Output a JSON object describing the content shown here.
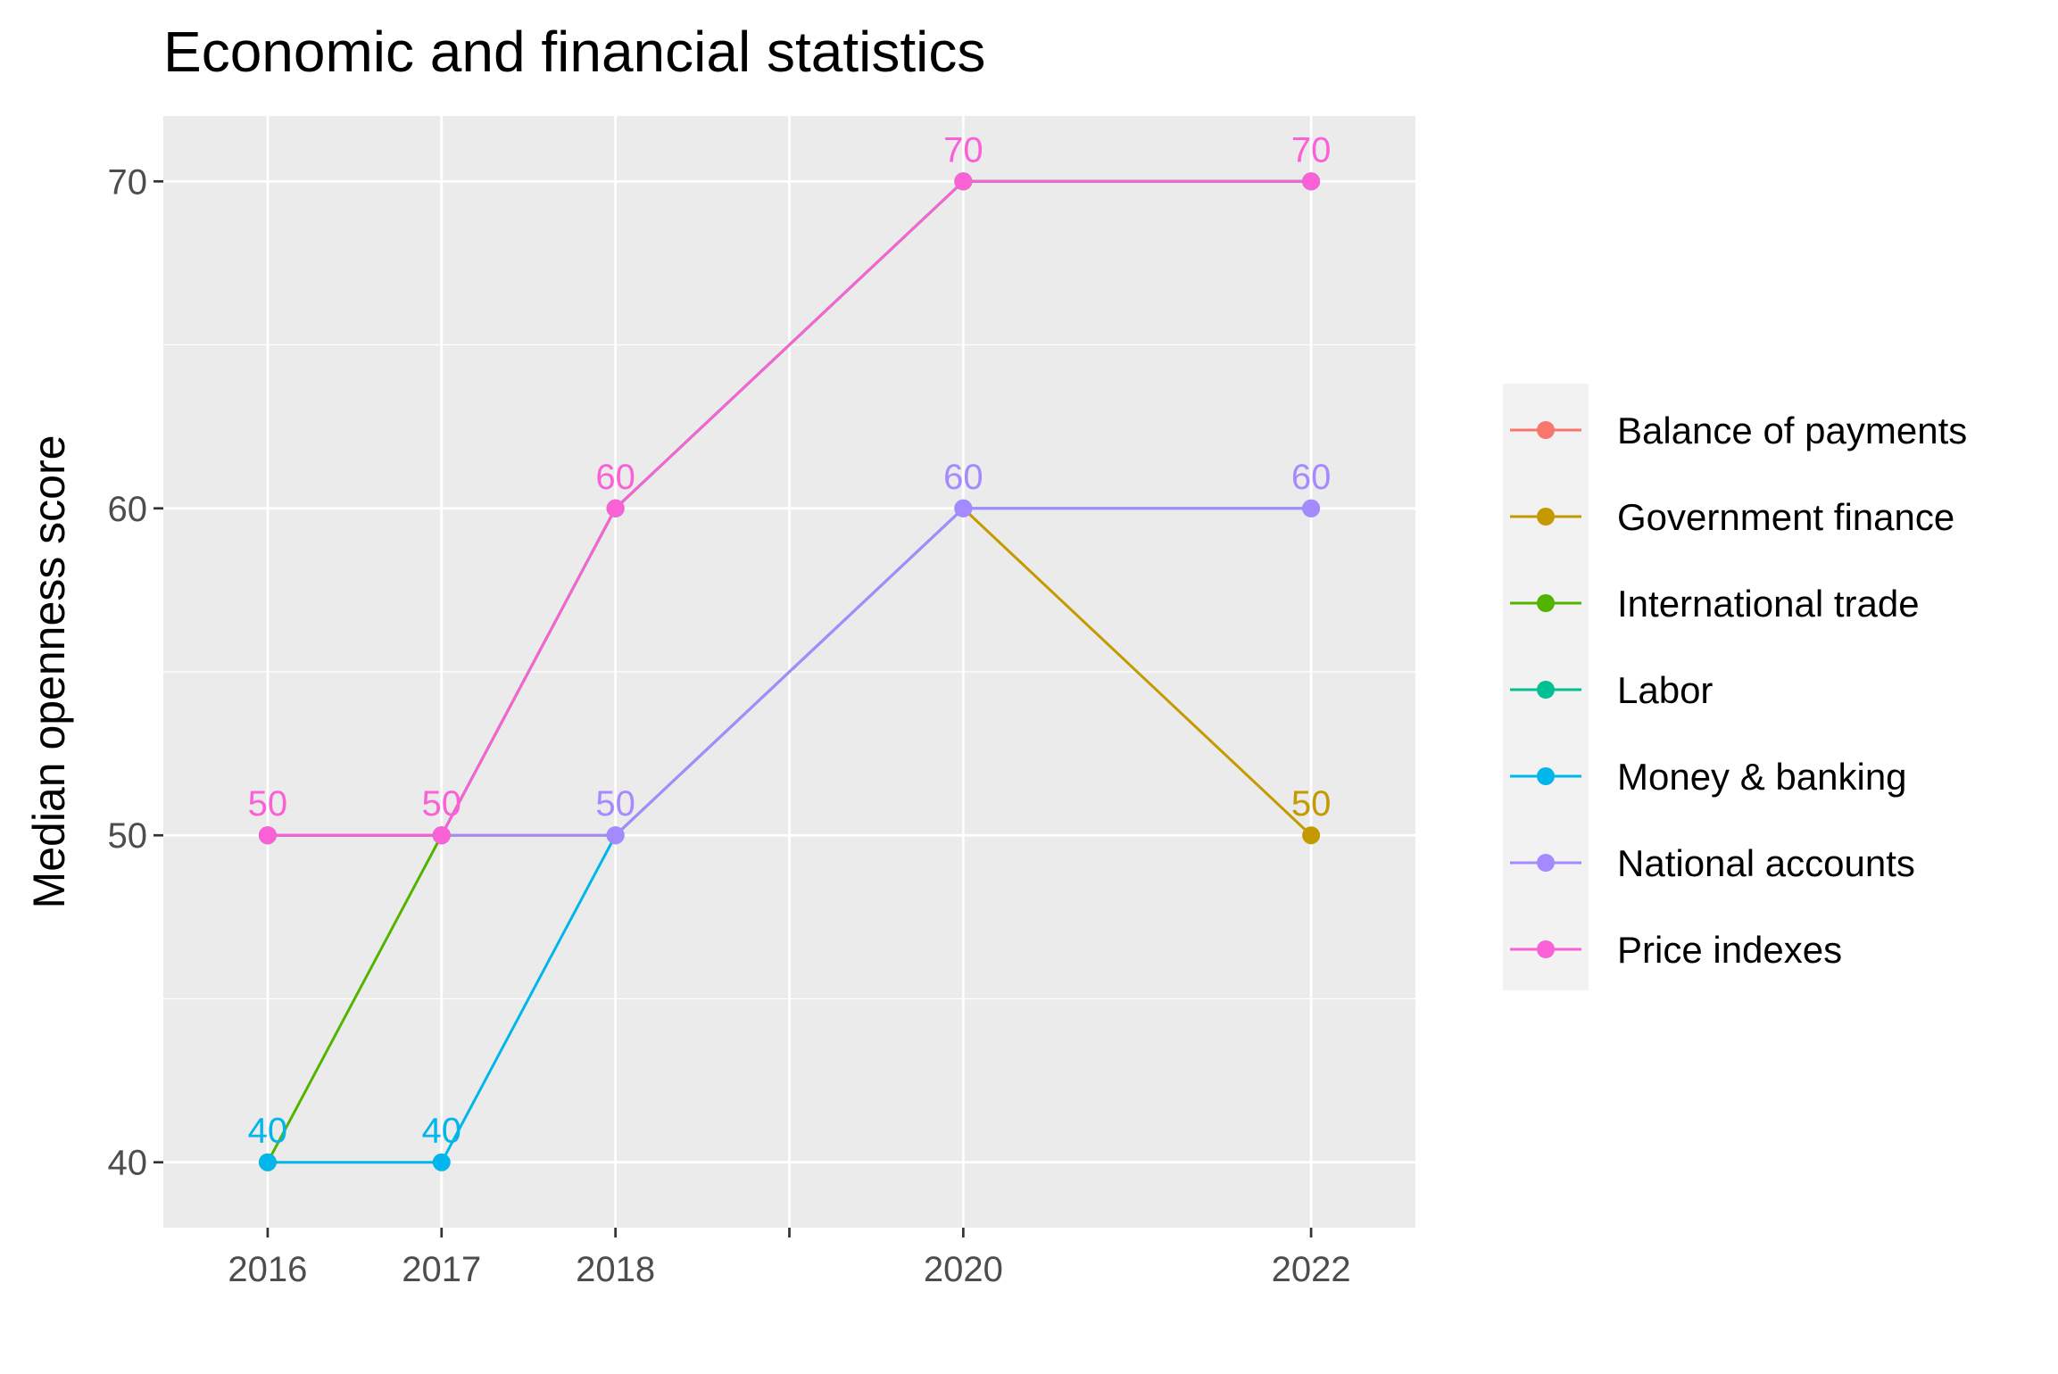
{
  "chart_data": {
    "type": "line",
    "title": "Economic and financial statistics",
    "xlabel": "",
    "ylabel": "Median openness score",
    "x_ticks": [
      2016,
      2017,
      2018,
      2019,
      2020,
      2022
    ],
    "x_tick_labels": [
      "2016",
      "2017",
      "2018",
      "",
      "2020",
      "2022"
    ],
    "xlim": [
      2015.4,
      2022.6
    ],
    "y_ticks": [
      40,
      50,
      60,
      70
    ],
    "y_tick_labels": [
      "40",
      "50",
      "60",
      "70"
    ],
    "ylim": [
      38,
      72
    ],
    "grid": true,
    "legend_position": "right",
    "series": [
      {
        "name": "Balance of payments",
        "color": "#F8766D",
        "x": [
          2016,
          2017,
          2018,
          2020,
          2022
        ],
        "y": [
          50,
          50,
          60,
          70,
          70
        ],
        "labels": []
      },
      {
        "name": "Government finance",
        "color": "#C49A00",
        "x": [
          2016,
          2017,
          2018,
          2020,
          2022
        ],
        "y": [
          50,
          50,
          50,
          60,
          50
        ],
        "labels": [
          "",
          "",
          "",
          "",
          "50"
        ]
      },
      {
        "name": "International trade",
        "color": "#53B400",
        "x": [
          2016,
          2017,
          2018,
          2020,
          2022
        ],
        "y": [
          40,
          50,
          60,
          70,
          70
        ],
        "labels": []
      },
      {
        "name": "Labor",
        "color": "#00C094",
        "x": [
          2016,
          2017,
          2018,
          2020,
          2022
        ],
        "y": [
          50,
          50,
          60,
          70,
          70
        ],
        "labels": []
      },
      {
        "name": "Money & banking",
        "color": "#00B6EB",
        "x": [
          2016,
          2017,
          2018,
          2020,
          2022
        ],
        "y": [
          40,
          40,
          50,
          60,
          60
        ],
        "labels": [
          "40",
          "40",
          "",
          "",
          ""
        ]
      },
      {
        "name": "National accounts",
        "color": "#A58AFF",
        "x": [
          2016,
          2017,
          2018,
          2020,
          2022
        ],
        "y": [
          50,
          50,
          50,
          60,
          60
        ],
        "labels": [
          "",
          "",
          "50",
          "60",
          "60"
        ]
      },
      {
        "name": "Price indexes",
        "color": "#FB61D7",
        "x": [
          2016,
          2017,
          2018,
          2020,
          2022
        ],
        "y": [
          50,
          50,
          60,
          70,
          70
        ],
        "labels": [
          "50",
          "50",
          "60",
          "70",
          "70"
        ]
      }
    ]
  }
}
